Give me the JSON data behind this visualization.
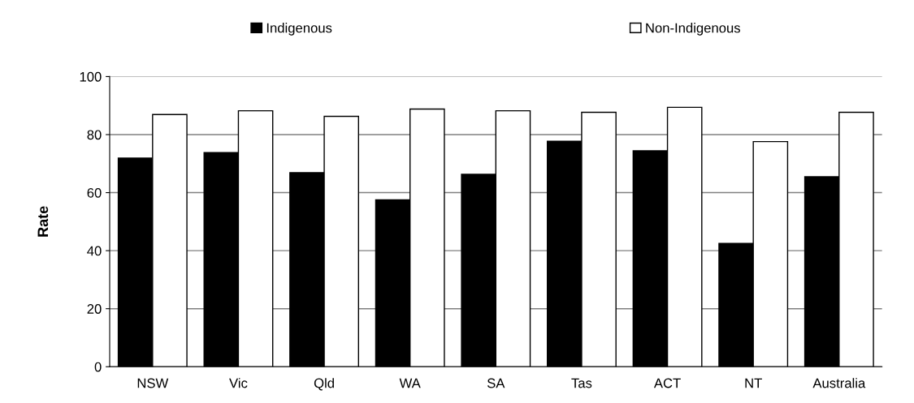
{
  "chart_data": {
    "type": "bar",
    "ylabel": "Rate",
    "categories": [
      "NSW",
      "Vic",
      "Qld",
      "WA",
      "SA",
      "Tas",
      "ACT",
      "NT",
      "Australia"
    ],
    "series": [
      {
        "name": "Indigenous",
        "color": "#000000",
        "values": [
          71.9,
          73.8,
          66.9,
          57.5,
          66.3,
          77.7,
          74.4,
          42.5,
          65.5
        ]
      },
      {
        "name": "Non-Indigenous",
        "color": "#ffffff",
        "values": [
          86.9,
          88.2,
          86.3,
          88.8,
          88.2,
          87.7,
          89.4,
          77.6,
          87.7
        ]
      }
    ],
    "ylim": [
      0,
      100
    ],
    "yticks": [
      0,
      20,
      40,
      60,
      80,
      100
    ],
    "grid": "y",
    "legend": "top"
  }
}
